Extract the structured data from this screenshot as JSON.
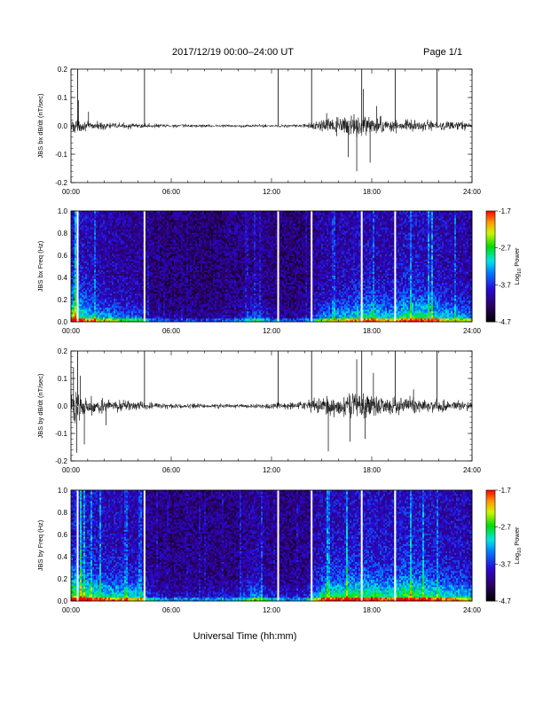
{
  "header": {
    "title": "2017/12/19   00:00–24:00 UT",
    "page": "Page 1/1"
  },
  "footer": {
    "xlabel": "Universal Time (hh:mm)"
  },
  "colors": {
    "trace": "#000000",
    "gap": "#ffffff",
    "background": "#ffffff"
  },
  "chart_data": [
    {
      "type": "line",
      "ylabel": "JBS bx dB/dt (nT/sec)",
      "xlim": [
        0,
        24
      ],
      "ylim": [
        -0.2,
        0.2
      ],
      "yticks": [
        "-0.2",
        "-0.1",
        "0.0",
        "0.1",
        "0.2"
      ],
      "xticks": [
        "00:00",
        "06:00",
        "12:00",
        "18:00",
        "24:00"
      ],
      "markers_hours": [
        0.4,
        4.4,
        12.4,
        14.4,
        17.4,
        19.4,
        21.9
      ],
      "envelope": {
        "hours": [
          0,
          0.5,
          1,
          2,
          3,
          4,
          6,
          8,
          10,
          12,
          14,
          15,
          16,
          17,
          17.5,
          18,
          19,
          20,
          21,
          22,
          23,
          24
        ],
        "amplitude": [
          0.05,
          0.03,
          0.02,
          0.02,
          0.015,
          0.012,
          0.01,
          0.008,
          0.008,
          0.008,
          0.01,
          0.03,
          0.045,
          0.05,
          0.06,
          0.045,
          0.035,
          0.03,
          0.03,
          0.025,
          0.022,
          0.02
        ]
      },
      "peaks": [
        {
          "hour": 0.45,
          "value": 0.09
        },
        {
          "hour": 1.05,
          "value": 0.05
        },
        {
          "hour": 15.3,
          "value": 0.045
        },
        {
          "hour": 16.6,
          "value": -0.11
        },
        {
          "hour": 17.1,
          "value": -0.16
        },
        {
          "hour": 17.5,
          "value": 0.13
        },
        {
          "hour": 17.9,
          "value": -0.13
        },
        {
          "hour": 18.3,
          "value": 0.07
        }
      ]
    },
    {
      "type": "heatmap",
      "ylabel": "JBS bx Freq (Hz)",
      "xlim": [
        0,
        24
      ],
      "ylim": [
        0,
        1.0
      ],
      "yticks": [
        "0.0",
        "0.2",
        "0.4",
        "0.6",
        "0.8",
        "1.0"
      ],
      "xticks": [
        "00:00",
        "06:00",
        "12:00",
        "18:00",
        "24:00"
      ],
      "gaps_hours": [
        0.4,
        4.4,
        12.4,
        14.4,
        17.4,
        19.4
      ],
      "colorbar": {
        "label": "Log10 Power",
        "min": -4.7,
        "max": -1.7,
        "ticks": [
          "-1.7",
          "-2.7",
          "-3.7",
          "-4.7"
        ]
      },
      "activity": {
        "hours": [
          0,
          1,
          2,
          3,
          4,
          5,
          6,
          8,
          10,
          11,
          12,
          13,
          14,
          15,
          16,
          17,
          18,
          19,
          20,
          21,
          22,
          23,
          24
        ],
        "intensity": [
          1.0,
          0.7,
          0.6,
          0.5,
          0.5,
          0.2,
          0.15,
          0.15,
          0.2,
          0.45,
          0.25,
          0.15,
          0.2,
          0.55,
          0.6,
          0.7,
          0.75,
          0.65,
          0.8,
          0.8,
          0.7,
          0.6,
          0.55
        ]
      }
    },
    {
      "type": "line",
      "ylabel": "JBS by dB/dt (nT/sec)",
      "xlim": [
        0,
        24
      ],
      "ylim": [
        -0.2,
        0.2
      ],
      "yticks": [
        "-0.2",
        "-0.1",
        "0.0",
        "0.1",
        "0.2"
      ],
      "xticks": [
        "00:00",
        "06:00",
        "12:00",
        "18:00",
        "24:00"
      ],
      "markers_hours": [
        0.4,
        4.4,
        12.4,
        14.4,
        17.4,
        19.4,
        21.9
      ],
      "envelope": {
        "hours": [
          0,
          0.5,
          1,
          2,
          3,
          4,
          5,
          6,
          8,
          10,
          12,
          13,
          14,
          15,
          16,
          17,
          18,
          19,
          20,
          21,
          22,
          23,
          24
        ],
        "amplitude": [
          0.09,
          0.07,
          0.05,
          0.035,
          0.03,
          0.025,
          0.018,
          0.015,
          0.012,
          0.012,
          0.015,
          0.018,
          0.025,
          0.05,
          0.065,
          0.075,
          0.06,
          0.045,
          0.045,
          0.04,
          0.035,
          0.03,
          0.03
        ]
      },
      "peaks": [
        {
          "hour": 0.15,
          "value": 0.14
        },
        {
          "hour": 0.35,
          "value": -0.17
        },
        {
          "hour": 0.55,
          "value": 0.11
        },
        {
          "hour": 0.8,
          "value": -0.14
        },
        {
          "hour": 2.1,
          "value": -0.07
        },
        {
          "hour": 15.4,
          "value": -0.165
        },
        {
          "hour": 16.7,
          "value": -0.13
        },
        {
          "hour": 17.1,
          "value": 0.17
        },
        {
          "hour": 17.6,
          "value": -0.12
        },
        {
          "hour": 18.1,
          "value": 0.12
        },
        {
          "hour": 20.5,
          "value": 0.06
        }
      ]
    },
    {
      "type": "heatmap",
      "ylabel": "JBS by Freq (Hz)",
      "xlim": [
        0,
        24
      ],
      "ylim": [
        0,
        1.0
      ],
      "yticks": [
        "0.0",
        "0.2",
        "0.4",
        "0.6",
        "0.8",
        "1.0"
      ],
      "xticks": [
        "00:00",
        "06:00",
        "12:00",
        "18:00",
        "24:00"
      ],
      "gaps_hours": [
        0.4,
        4.4,
        12.4,
        14.4,
        17.4,
        19.4
      ],
      "colorbar": {
        "label": "Log10 Power",
        "min": -4.7,
        "max": -1.7,
        "ticks": [
          "-1.7",
          "-2.7",
          "-3.7",
          "-4.7"
        ]
      },
      "activity": {
        "hours": [
          0,
          1,
          2,
          3,
          4,
          5,
          6,
          8,
          10,
          11,
          12,
          13,
          14,
          15,
          16,
          17,
          18,
          19,
          20,
          21,
          22,
          23,
          24
        ],
        "intensity": [
          1.0,
          0.85,
          0.75,
          0.7,
          0.65,
          0.3,
          0.25,
          0.25,
          0.3,
          0.55,
          0.35,
          0.25,
          0.3,
          0.75,
          0.8,
          0.85,
          0.85,
          0.75,
          0.9,
          0.85,
          0.75,
          0.7,
          0.65
        ]
      }
    }
  ]
}
